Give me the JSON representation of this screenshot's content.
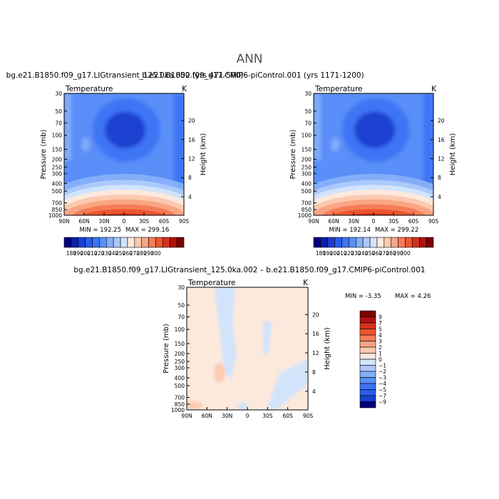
{
  "figure": {
    "title": "ANN"
  },
  "chart_data": [
    {
      "type": "heatmap",
      "title": "bg.e21.B1850.f09_g17.LIGtransient_125.0ka.002 (yrs 471-500)",
      "variable": "Temperature",
      "units": "K",
      "ylabel": "Pressure (mb)",
      "y2label": "Height (km)",
      "x_ticks": [
        "90N",
        "60N",
        "30N",
        "0",
        "30S",
        "60S",
        "90S"
      ],
      "y_ticks": [
        "30",
        "50",
        "70",
        "100",
        "150",
        "200",
        "250",
        "300",
        "400",
        "500",
        "700",
        "850",
        "1000"
      ],
      "y2_ticks": [
        "20",
        "16",
        "12",
        "8",
        "4"
      ],
      "ylim": [
        30,
        1000
      ],
      "y_scale": "log",
      "min_label": "MIN = 192.25",
      "max_label": "MAX = 299.16",
      "min": 192.25,
      "max": 299.16,
      "colorbar": {
        "orientation": "horizontal",
        "labels": [
          "180",
          "190",
          "200",
          "210",
          "220",
          "230",
          "240",
          "250",
          "260",
          "270",
          "280",
          "290",
          "300"
        ],
        "colors": [
          "#000080",
          "#0a1ea8",
          "#1a3fd0",
          "#2a5cec",
          "#3d74f5",
          "#5a8ef8",
          "#84aef9",
          "#abc9fa",
          "#d2e4fb",
          "#fde9dc",
          "#fbcab0",
          "#f9a583",
          "#f67c58",
          "#ec5530",
          "#d6311a",
          "#b1120d",
          "#800000"
        ]
      }
    },
    {
      "type": "heatmap",
      "title": "b.e21.B1850.f09_g17.CMIP6-piControl.001 (yrs 1171-1200)",
      "variable": "Temperature",
      "units": "K",
      "ylabel": "Pressure (mb)",
      "y2label": "Height (km)",
      "x_ticks": [
        "90N",
        "60N",
        "30N",
        "0",
        "30S",
        "60S",
        "90S"
      ],
      "y_ticks": [
        "30",
        "50",
        "70",
        "100",
        "150",
        "200",
        "250",
        "300",
        "400",
        "500",
        "700",
        "850",
        "1000"
      ],
      "y2_ticks": [
        "20",
        "16",
        "12",
        "8",
        "4"
      ],
      "ylim": [
        30,
        1000
      ],
      "y_scale": "log",
      "min_label": "MIN = 192.14",
      "max_label": "MAX = 299.22",
      "min": 192.14,
      "max": 299.22,
      "colorbar": {
        "orientation": "horizontal",
        "labels": [
          "180",
          "190",
          "200",
          "210",
          "220",
          "230",
          "240",
          "250",
          "260",
          "270",
          "280",
          "290",
          "300"
        ],
        "colors": [
          "#000080",
          "#0a1ea8",
          "#1a3fd0",
          "#2a5cec",
          "#3d74f5",
          "#5a8ef8",
          "#84aef9",
          "#abc9fa",
          "#d2e4fb",
          "#fde9dc",
          "#fbcab0",
          "#f9a583",
          "#f67c58",
          "#ec5530",
          "#d6311a",
          "#b1120d",
          "#800000"
        ]
      }
    },
    {
      "type": "heatmap",
      "title": "bg.e21.B1850.f09_g17.LIGtransient_125.0ka.002 – b.e21.B1850.f09_g17.CMIP6-piControl.001",
      "variable": "Temperature",
      "units": "K",
      "ylabel": "Pressure (mb)",
      "y2label": "Height (km)",
      "x_ticks": [
        "90N",
        "60N",
        "30N",
        "0",
        "30S",
        "60S",
        "90S"
      ],
      "y_ticks": [
        "30",
        "50",
        "70",
        "100",
        "150",
        "200",
        "250",
        "300",
        "400",
        "500",
        "700",
        "850",
        "1000"
      ],
      "y2_ticks": [
        "20",
        "16",
        "12",
        "8",
        "4"
      ],
      "ylim": [
        30,
        1000
      ],
      "y_scale": "log",
      "min_label": "MIN = -3.35",
      "max_label": "MAX = 4.26",
      "min": -3.35,
      "max": 4.26,
      "colorbar": {
        "orientation": "vertical",
        "labels": [
          "9",
          "7",
          "5",
          "4",
          "3",
          "2",
          "1",
          "0",
          "−1",
          "−2",
          "−3",
          "−4",
          "−5",
          "−7",
          "−9"
        ],
        "colors": [
          "#800000",
          "#b1120d",
          "#d6311a",
          "#ec5530",
          "#f67c58",
          "#f9a583",
          "#fbcab0",
          "#fde9dc",
          "#d2e4fb",
          "#abc9fa",
          "#84aef9",
          "#5a8ef8",
          "#3d74f5",
          "#2a5cec",
          "#1a3fd0",
          "#000080"
        ]
      }
    }
  ]
}
